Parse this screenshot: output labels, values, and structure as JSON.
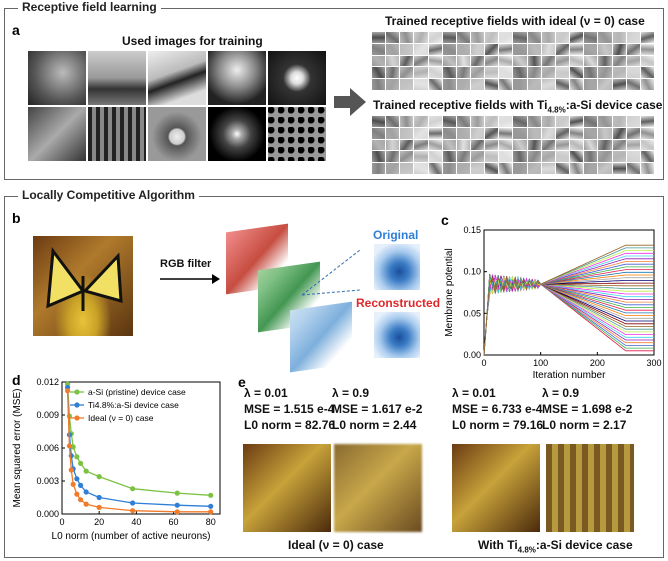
{
  "sections": {
    "receptive": "Receptive field learning",
    "lca": "Locally Competitive Algorithm"
  },
  "labels": {
    "a": "a",
    "b": "b",
    "c": "c",
    "d": "d",
    "e": "e"
  },
  "panel_a": {
    "used_images": "Used images for training",
    "rf_ideal": "Trained receptive fields with ideal (ν = 0) case",
    "rf_device_pre": "Trained receptive fields with Ti",
    "rf_device_sub": "4.8%",
    "rf_device_post": ":a-Si device case"
  },
  "panel_b": {
    "rgb_filter": "RGB filter",
    "original": "Original",
    "reconstructed": "Reconstructed"
  },
  "panel_e": {
    "cases": [
      {
        "lambda": "λ = 0.01",
        "mse": "MSE = 1.515 e-4",
        "l0": "L0 norm = 82.76"
      },
      {
        "lambda": "λ = 0.9",
        "mse": "MSE = 1.617 e-2",
        "l0": "L0 norm = 2.44"
      },
      {
        "lambda": "λ = 0.01",
        "mse": "MSE = 6.733 e-4",
        "l0": "L0 norm = 79.16"
      },
      {
        "lambda": "λ = 0.9",
        "mse": "MSE = 1.698 e-2",
        "l0": "L0 norm = 2.17"
      }
    ],
    "ideal_caption": "Ideal (ν = 0) case",
    "device_caption_pre": "With Ti",
    "device_caption_sub": "4.8%",
    "device_caption_post": ":a-Si device case"
  },
  "chart_data": [
    {
      "type": "line",
      "id": "c",
      "xlabel": "Iteration number",
      "ylabel": "Membrane potential",
      "xlim": [
        0,
        300
      ],
      "ylim": [
        0,
        0.15
      ],
      "xticks": [
        "0",
        "100",
        "200",
        "300"
      ],
      "yticks": [
        "0.00",
        "0.05",
        "0.10",
        "0.15"
      ]
    },
    {
      "type": "line",
      "id": "d",
      "xlabel": "L0 norm (number of active neurons)",
      "ylabel": "Mean squared error (MSE)",
      "xlim": [
        0,
        85
      ],
      "ylim": [
        0,
        0.012
      ],
      "xticks": [
        "0",
        "20",
        "40",
        "60",
        "80"
      ],
      "yticks": [
        "0.000",
        "0.003",
        "0.006",
        "0.009",
        "0.012"
      ],
      "series": [
        {
          "name": "a-Si (pristine) device case",
          "color": "#7cc242",
          "x": [
            3,
            4,
            5,
            6,
            8,
            10,
            13,
            20,
            38,
            62,
            80
          ],
          "y": [
            0.0118,
            0.0089,
            0.0073,
            0.0061,
            0.0052,
            0.0046,
            0.0039,
            0.0034,
            0.0023,
            0.0019,
            0.0017
          ]
        },
        {
          "name": "Ti4.8%:a-Si device case",
          "color": "#2f7fd6",
          "x": [
            3,
            4,
            5,
            6,
            8,
            10,
            13,
            20,
            38,
            62,
            80
          ],
          "y": [
            0.0115,
            0.0072,
            0.0053,
            0.0041,
            0.0032,
            0.0026,
            0.002,
            0.0015,
            0.001,
            0.0008,
            0.0007
          ]
        },
        {
          "name": "Ideal (ν = 0) case",
          "color": "#f07b2a",
          "x": [
            3,
            4,
            5,
            6,
            8,
            10,
            13,
            20,
            38,
            62,
            80
          ],
          "y": [
            0.0112,
            0.0062,
            0.004,
            0.0027,
            0.0018,
            0.0013,
            0.0009,
            0.0006,
            0.0003,
            0.0002,
            0.0002
          ]
        }
      ]
    }
  ]
}
